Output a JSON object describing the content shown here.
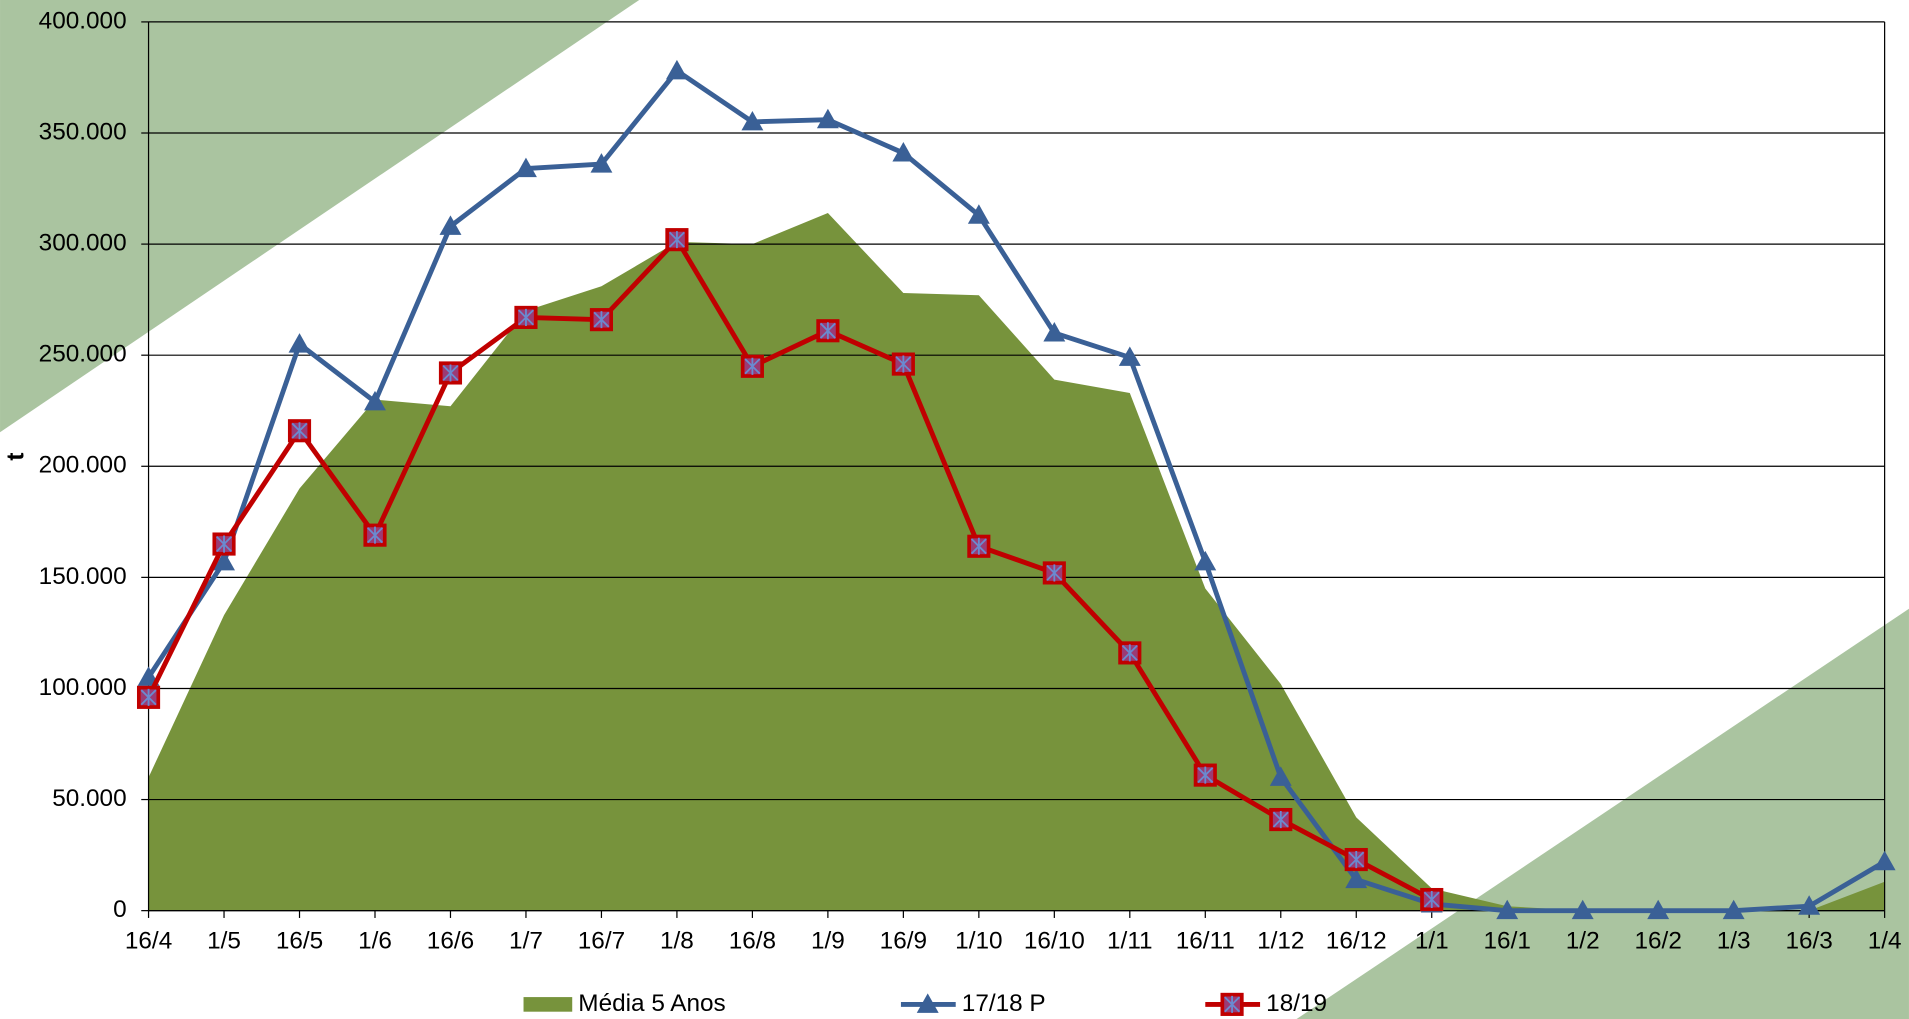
{
  "chart_data": {
    "type": "line",
    "y_label": "t",
    "categories": [
      "16/4",
      "1/5",
      "16/5",
      "1/6",
      "16/6",
      "1/7",
      "16/7",
      "1/8",
      "16/8",
      "1/9",
      "16/9",
      "1/10",
      "16/10",
      "1/11",
      "16/11",
      "1/12",
      "16/12",
      "1/1",
      "16/1",
      "1/2",
      "16/2",
      "1/3",
      "16/3",
      "1/4"
    ],
    "series": [
      {
        "name": "Média  5 Anos",
        "color": "#77933c",
        "kind": "area",
        "values": [
          60000,
          133000,
          190000,
          230000,
          227000,
          270000,
          281000,
          301000,
          300000,
          314000,
          278000,
          277000,
          239000,
          233000,
          145000,
          102000,
          42000,
          10000,
          2000,
          0,
          0,
          0,
          0,
          13000
        ]
      },
      {
        "name": "17/18 P",
        "color": "#3a6096",
        "kind": "line",
        "marker": "triangle",
        "values": [
          105000,
          157000,
          255000,
          229000,
          308000,
          334000,
          336000,
          378000,
          355000,
          356000,
          341000,
          313000,
          260000,
          249000,
          157000,
          60000,
          14000,
          3000,
          0,
          0,
          0,
          0,
          2000,
          22000
        ]
      },
      {
        "name": "18/19",
        "color": "#c00000",
        "kind": "line",
        "marker": "square",
        "values": [
          96000,
          165000,
          216000,
          169000,
          242000,
          267000,
          266000,
          302000,
          245000,
          261000,
          246000,
          164000,
          152000,
          116000,
          61000,
          41000,
          23000,
          5000,
          null,
          null,
          null,
          null,
          null,
          null
        ]
      }
    ],
    "ylim": [
      0,
      400000
    ],
    "yticks": [
      0,
      {
        "value": 50000,
        "label": "50.000"
      },
      {
        "value": 100000,
        "label": "100.000"
      },
      {
        "value": 150000,
        "label": "150.000"
      },
      {
        "value": 200000,
        "label": "200.000"
      },
      {
        "value": 250000,
        "label": "250.000"
      },
      {
        "value": 300000,
        "label": "300.000"
      },
      {
        "value": 350000,
        "label": "350.000"
      },
      {
        "value": 400000,
        "label": "400.000"
      }
    ],
    "grid": true,
    "legend": "bottom"
  }
}
